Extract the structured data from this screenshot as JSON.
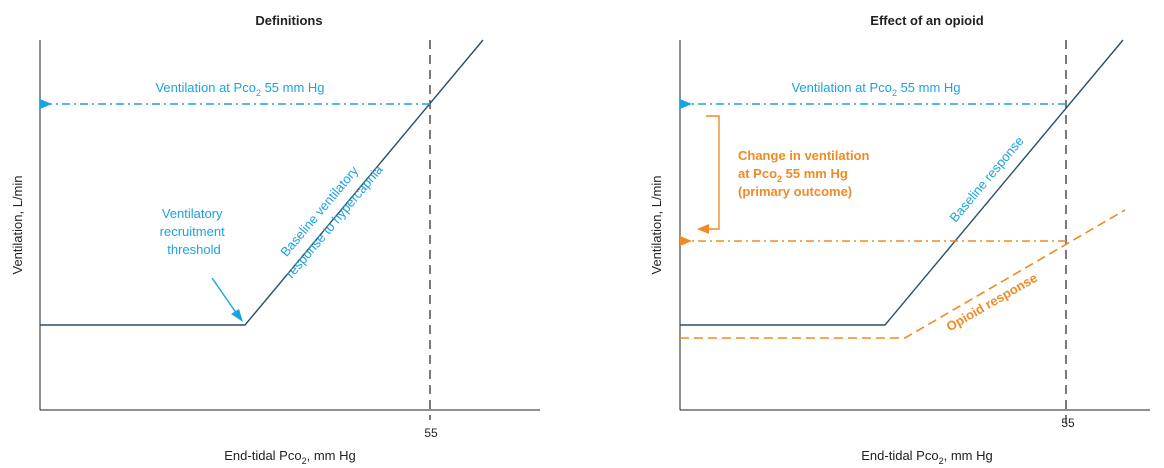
{
  "colors": {
    "axis": "#222222",
    "baseline_line": "#2c4f66",
    "blue_accent": "#1aa3e0",
    "orange_accent": "#f08a24",
    "dashed_ref": "#333333"
  },
  "left_panel": {
    "title": "Definitions",
    "ylabel": "Ventilation, L/min",
    "xlabel_main": "End-tidal Pco",
    "xlabel_sub": "2",
    "xlabel_tail": ", mm Hg",
    "tick_55": "55",
    "arrow_label_main": "Ventilation at Pco",
    "arrow_label_sub": "2",
    "arrow_label_tail": " 55 mm Hg",
    "threshold_label": [
      "Ventilatory",
      "recruitment",
      "threshold"
    ],
    "slope_label": [
      "Baseline ventilatory",
      "response to hypercapnia"
    ]
  },
  "right_panel": {
    "title": "Effect of an opioid",
    "ylabel": "Ventilation, L/min",
    "xlabel_main": "End-tidal Pco",
    "xlabel_sub": "2",
    "xlabel_tail": ", mm Hg",
    "tick_55": "55",
    "arrow_label_main": "Ventilation at Pco",
    "arrow_label_sub": "2",
    "arrow_label_tail": " 55 mm Hg",
    "change_line1": "Change in ventilation",
    "change_line2_main": "at Pco",
    "change_line2_sub": "2",
    "change_line2_tail": " 55 mm Hg",
    "change_line3": "(primary outcome)",
    "baseline_label": "Baseline response",
    "opioid_label": "Opioid response"
  }
}
